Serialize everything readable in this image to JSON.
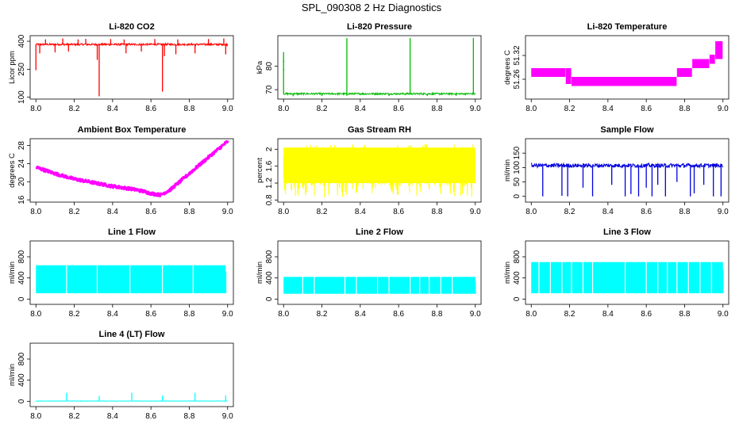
{
  "page_title": "SPL_090308  2 Hz Diagnostics",
  "chart_data": [
    {
      "type": "line",
      "title": "Li-820 CO2",
      "ylabel": "Licor ppm",
      "xlim": [
        0.0,
        9.0
      ],
      "x_range": [
        8.0,
        9.0
      ],
      "xticks": [
        "8.0",
        "8.2",
        "8.4",
        "8.6",
        "8.8",
        "9.0"
      ],
      "ylim": [
        90,
        430
      ],
      "yticks": [
        100,
        250,
        400
      ],
      "color": "#ff0000",
      "render": "trace",
      "trace": {
        "base": 383,
        "noise": 3,
        "band_low": 378,
        "band_high": 388
      },
      "spikes_up": [
        [
          8.05,
          410
        ],
        [
          8.14,
          415
        ],
        [
          8.22,
          410
        ],
        [
          8.26,
          413
        ],
        [
          8.39,
          412
        ],
        [
          8.46,
          410
        ],
        [
          8.62,
          412
        ],
        [
          8.74,
          410
        ],
        [
          8.9,
          412
        ],
        [
          8.98,
          415
        ]
      ],
      "spikes_down": [
        [
          8.0,
          245
        ],
        [
          8.02,
          335
        ],
        [
          8.1,
          340
        ],
        [
          8.17,
          345
        ],
        [
          8.32,
          300
        ],
        [
          8.33,
          105
        ],
        [
          8.47,
          335
        ],
        [
          8.55,
          345
        ],
        [
          8.66,
          130
        ],
        [
          8.67,
          320
        ],
        [
          8.73,
          330
        ],
        [
          8.83,
          335
        ],
        [
          8.99,
          330
        ]
      ]
    },
    {
      "type": "line",
      "title": "Li-820 Pressure",
      "ylabel": "kPa",
      "xlim": [
        0.0,
        9.0
      ],
      "x_range": [
        8.0,
        9.0
      ],
      "xticks": [
        "8.0",
        "8.2",
        "8.4",
        "8.6",
        "8.8",
        "9.0"
      ],
      "ylim": [
        66,
        93
      ],
      "yticks": [
        70,
        80
      ],
      "color": "#00bb00",
      "render": "trace",
      "trace": {
        "base": 68.2,
        "noise": 0.3,
        "band_low": 67.9,
        "band_high": 68.6
      },
      "spikes_up": [
        [
          8.0,
          86
        ],
        [
          8.33,
          92
        ],
        [
          8.66,
          92
        ],
        [
          8.99,
          92
        ]
      ],
      "spikes_down": [
        [
          8.05,
          67.2
        ],
        [
          8.2,
          67.3
        ],
        [
          8.33,
          67.4
        ],
        [
          8.55,
          67.3
        ],
        [
          8.75,
          67.3
        ],
        [
          8.9,
          67.4
        ]
      ],
      "points": [
        [
          8.0,
          78.5
        ],
        [
          8.0,
          82
        ]
      ]
    },
    {
      "type": "line",
      "title": "Li-820 Temperature",
      "ylabel": "degrees C",
      "xlim": [
        0.0,
        9.0
      ],
      "x_range": [
        8.0,
        9.0
      ],
      "xticks": [
        "8.0",
        "8.2",
        "8.4",
        "8.6",
        "8.8",
        "9.0"
      ],
      "ylim": [
        51.21,
        51.37
      ],
      "yticks": [
        51.26,
        51.32
      ],
      "color": "#ff00ff",
      "render": "bands",
      "bands": [
        [
          8.0,
          8.18,
          51.266,
          51.288
        ],
        [
          8.18,
          8.21,
          51.248,
          51.288
        ],
        [
          8.21,
          8.76,
          51.243,
          51.266
        ],
        [
          8.76,
          8.84,
          51.266,
          51.288
        ],
        [
          8.84,
          8.93,
          51.288,
          51.311
        ],
        [
          8.93,
          8.96,
          51.299,
          51.322
        ],
        [
          8.96,
          9.0,
          51.311,
          51.356
        ]
      ]
    },
    {
      "type": "line",
      "title": "Ambient Box Temperature",
      "ylabel": "degrees C",
      "xlim": [
        0.0,
        9.0
      ],
      "x_range": [
        8.0,
        9.0
      ],
      "xticks": [
        "8.0",
        "8.2",
        "8.4",
        "8.6",
        "8.8",
        "9.0"
      ],
      "ylim": [
        15.5,
        29.5
      ],
      "yticks": [
        16,
        20,
        24,
        28
      ],
      "color": "#ff00ff",
      "render": "curve",
      "curve": [
        [
          8.0,
          23.2
        ],
        [
          8.1,
          21.8
        ],
        [
          8.2,
          20.6
        ],
        [
          8.3,
          19.8
        ],
        [
          8.4,
          19.0
        ],
        [
          8.5,
          18.4
        ],
        [
          8.55,
          18.0
        ],
        [
          8.6,
          17.4
        ],
        [
          8.65,
          17.1
        ],
        [
          8.7,
          18.2
        ],
        [
          8.8,
          21.8
        ],
        [
          8.9,
          25.4
        ],
        [
          9.0,
          28.9
        ]
      ],
      "curve_width": 0.6
    },
    {
      "type": "line",
      "title": "Gas Stream RH",
      "ylabel": "percent",
      "xlim": [
        0.0,
        9.0
      ],
      "x_range": [
        8.0,
        9.0
      ],
      "xticks": [
        "8.0",
        "8.2",
        "8.4",
        "8.6",
        "8.8",
        "9.0"
      ],
      "ylim": [
        0.75,
        2.25
      ],
      "yticks": [
        0.8,
        1.2,
        1.6,
        2.0
      ],
      "color": "#ffff00",
      "render": "noise",
      "noise": {
        "top": 2.04,
        "bottom": 1.12,
        "dense_low": 1.2,
        "min": 0.86,
        "max": 2.13
      }
    },
    {
      "type": "line",
      "title": "Sample Flow",
      "ylabel": "ml/min",
      "xlim": [
        0.0,
        9.0
      ],
      "x_range": [
        8.0,
        9.0
      ],
      "xticks": [
        "8.0",
        "8.2",
        "8.4",
        "8.6",
        "8.8",
        "9.0"
      ],
      "ylim": [
        -20,
        200
      ],
      "yticks": [
        0,
        50,
        100,
        150
      ],
      "color": "#0000dd",
      "render": "trace",
      "trace": {
        "base": 107,
        "noise": 5,
        "band_low": 100,
        "band_high": 114
      },
      "spikes_up": [],
      "spikes_down": [
        [
          8.06,
          0
        ],
        [
          8.16,
          2
        ],
        [
          8.19,
          0
        ],
        [
          8.27,
          30
        ],
        [
          8.32,
          0
        ],
        [
          8.42,
          40
        ],
        [
          8.49,
          0
        ],
        [
          8.52,
          8
        ],
        [
          8.56,
          0
        ],
        [
          8.6,
          30
        ],
        [
          8.63,
          0
        ],
        [
          8.66,
          40
        ],
        [
          8.7,
          0
        ],
        [
          8.76,
          50
        ],
        [
          8.83,
          0
        ],
        [
          8.85,
          10
        ],
        [
          8.9,
          40
        ],
        [
          8.95,
          0
        ],
        [
          8.99,
          0
        ]
      ]
    },
    {
      "type": "line",
      "title": "Line 1 Flow",
      "ylabel": "ml/min",
      "xlim": [
        0.0,
        9.0
      ],
      "x_range": [
        8.0,
        9.0
      ],
      "xticks": [
        "8.0",
        "8.2",
        "8.4",
        "8.6",
        "8.8",
        "9.0"
      ],
      "ylim": [
        -100,
        1100
      ],
      "yticks": [
        0,
        400,
        800
      ],
      "color": "#00ffff",
      "render": "block",
      "block": {
        "low": 110,
        "high": 640,
        "end": 8.99,
        "tail_high": 520
      },
      "gaps": [
        8.16,
        8.32,
        8.49,
        8.66,
        8.82
      ]
    },
    {
      "type": "line",
      "title": "Line 2 Flow",
      "ylabel": "ml/min",
      "xlim": [
        0.0,
        9.0
      ],
      "x_range": [
        8.0,
        9.0
      ],
      "xticks": [
        "8.0",
        "8.2",
        "8.4",
        "8.6",
        "8.8",
        "9.0"
      ],
      "ylim": [
        -100,
        1100
      ],
      "yticks": [
        0,
        400,
        800
      ],
      "color": "#00ffff",
      "render": "block",
      "block": {
        "low": 100,
        "high": 420,
        "end": 9.0,
        "tail_high": 330
      },
      "gaps": [
        8.1,
        8.16,
        8.32,
        8.38,
        8.49,
        8.55,
        8.66,
        8.71,
        8.76,
        8.82,
        8.88
      ]
    },
    {
      "type": "line",
      "title": "Line 3 Flow",
      "ylabel": "ml/min",
      "xlim": [
        0.0,
        9.0
      ],
      "x_range": [
        8.0,
        9.0
      ],
      "xticks": [
        "8.0",
        "8.2",
        "8.4",
        "8.6",
        "8.8",
        "9.0"
      ],
      "ylim": [
        -100,
        1100
      ],
      "yticks": [
        0,
        400,
        800
      ],
      "color": "#00ffff",
      "render": "block",
      "block": {
        "low": 110,
        "high": 700,
        "end": 9.0,
        "tail_high": 560
      },
      "gaps": [
        8.04,
        8.1,
        8.16,
        8.21,
        8.27,
        8.32,
        8.49,
        8.6,
        8.66,
        8.71,
        8.76,
        8.82,
        8.88,
        8.94
      ]
    },
    {
      "type": "line",
      "title": "Line 4 (LT) Flow",
      "ylabel": "ml/min",
      "xlim": [
        0.0,
        9.0
      ],
      "x_range": [
        8.0,
        9.0
      ],
      "xticks": [
        "8.0",
        "8.2",
        "8.4",
        "8.6",
        "8.8",
        "9.0"
      ],
      "ylim": [
        -100,
        1100
      ],
      "yticks": [
        0,
        400,
        800
      ],
      "color": "#00ffff",
      "render": "trace",
      "trace": {
        "base": 5,
        "noise": 2,
        "band_low": 2,
        "band_high": 8
      },
      "spikes_up": [
        [
          8.16,
          160
        ],
        [
          8.33,
          100
        ],
        [
          8.5,
          160
        ],
        [
          8.66,
          110
        ],
        [
          8.83,
          160
        ],
        [
          8.99,
          110
        ]
      ],
      "spikes_down": []
    }
  ]
}
